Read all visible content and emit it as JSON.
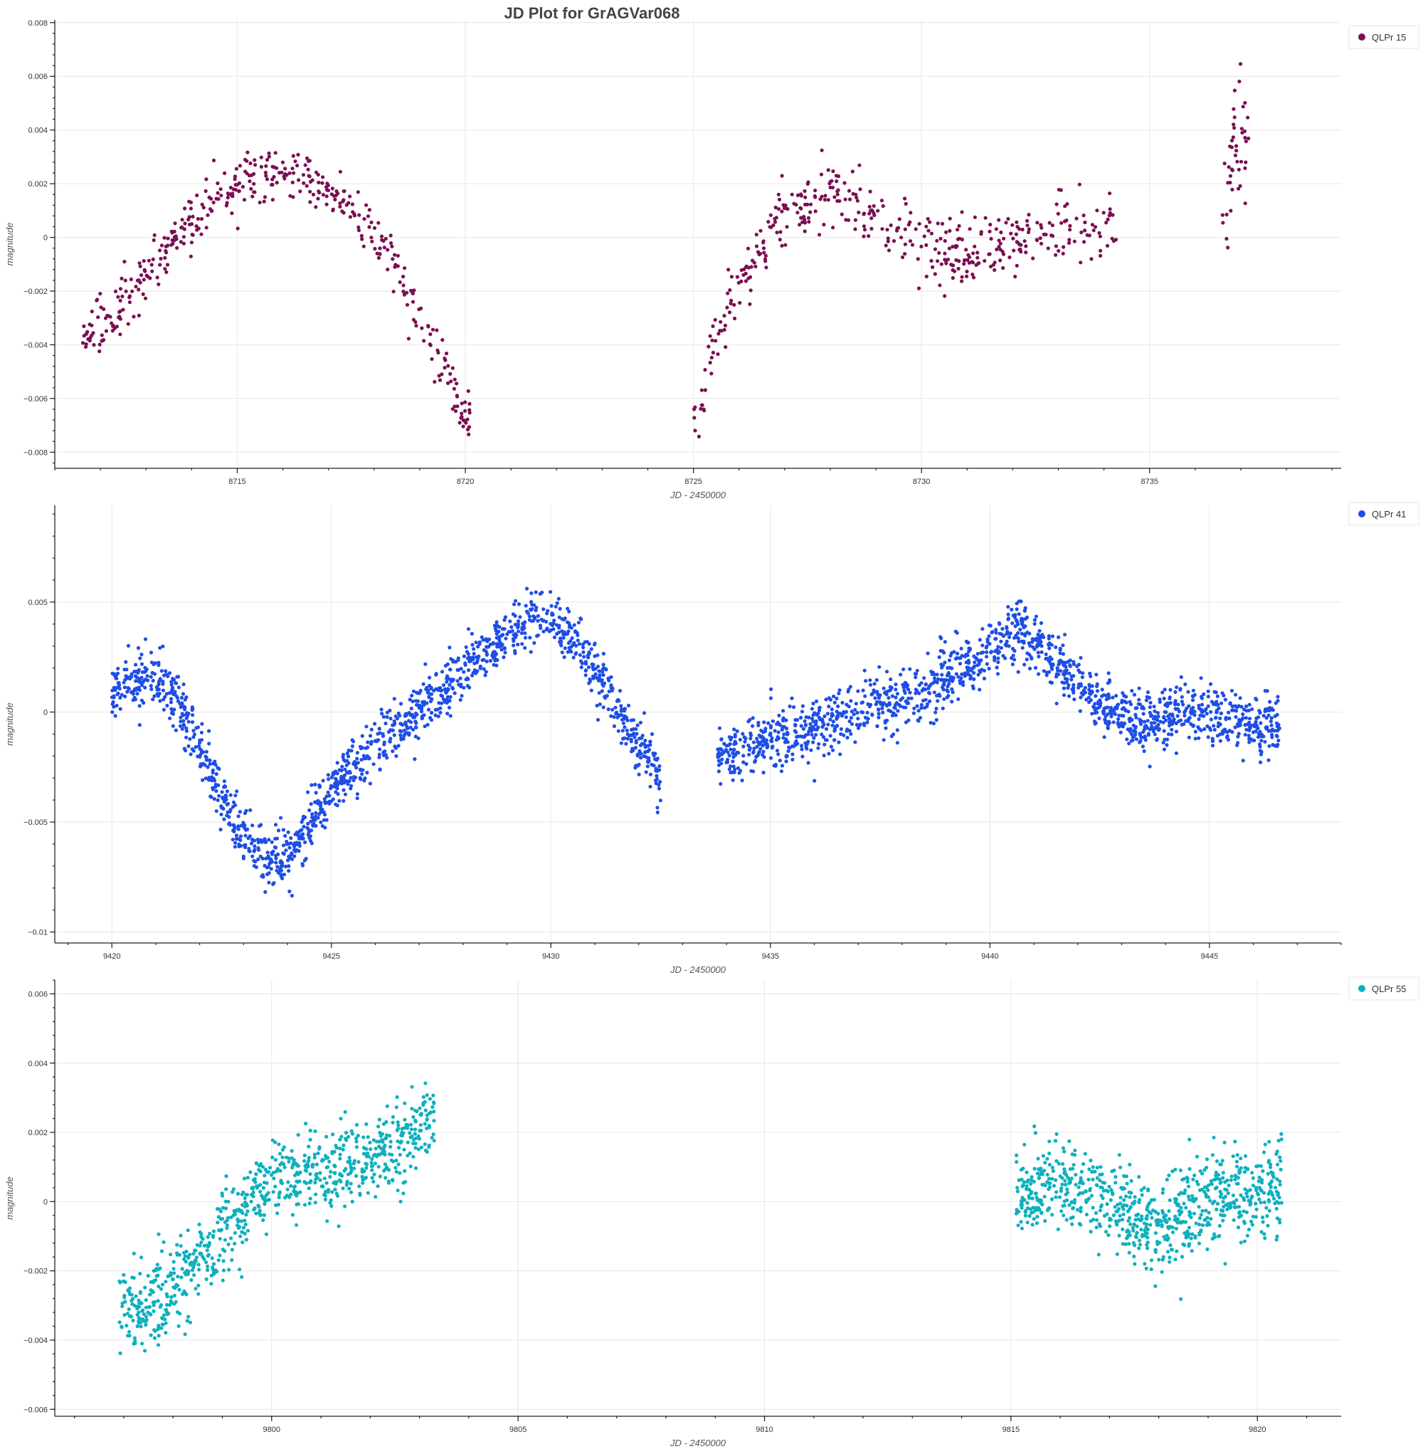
{
  "title": "JD Plot for GrAGVar068",
  "chart_data": [
    {
      "type": "scatter",
      "series": [
        {
          "name": "QLPr 15",
          "color": "#7b0f52"
        }
      ],
      "xlabel": "JD - 2450000",
      "ylabel": "magnitude",
      "xlim": [
        8711.0,
        8739.2
      ],
      "ylim": [
        0.0081,
        -0.0086
      ],
      "y_inverted": true,
      "xticks": [
        8715,
        8720,
        8725,
        8730,
        8735
      ],
      "xtick_labels": [
        "8715",
        "8720",
        "8725",
        "8730",
        "8735"
      ],
      "yticks": [
        -0.008,
        -0.006,
        -0.004,
        -0.002,
        0,
        0.002,
        0.004,
        0.006,
        0.008
      ],
      "ytick_labels": [
        "−0.008",
        "−0.006",
        "−0.004",
        "−0.002",
        "0",
        "0.002",
        "0.004",
        "0.006",
        "0.008"
      ],
      "grid": true,
      "legend": "top-right",
      "observing_runs": [
        {
          "x_start": 8711.6,
          "x_end": 8720.1,
          "n": 420,
          "trend": [
            [
              8711.6,
              -0.0038
            ],
            [
              8712.5,
              -0.0025
            ],
            [
              8713.5,
              -0.0003
            ],
            [
              8714.5,
              0.0015
            ],
            [
              8715.5,
              0.0023
            ],
            [
              8716.5,
              0.0023
            ],
            [
              8717.5,
              0.0012
            ],
            [
              8718.3,
              -0.0005
            ],
            [
              8719.0,
              -0.003
            ],
            [
              8719.6,
              -0.005
            ],
            [
              8720.0,
              -0.0066
            ]
          ],
          "scatter": 0.00085
        },
        {
          "x_start": 8725.0,
          "x_end": 8734.3,
          "n": 420,
          "trend": [
            [
              8725.0,
              -0.007
            ],
            [
              8725.4,
              -0.004
            ],
            [
              8726.0,
              -0.0018
            ],
            [
              8727.0,
              0.0009
            ],
            [
              8728.0,
              0.0016
            ],
            [
              8729.0,
              0.0008
            ],
            [
              8730.0,
              -0.0002
            ],
            [
              8731.0,
              -0.0008
            ],
            [
              8732.0,
              -0.0002
            ],
            [
              8733.0,
              0.0003
            ],
            [
              8734.3,
              0.0004
            ]
          ],
          "scatter": 0.0011
        },
        {
          "x_start": 8736.6,
          "x_end": 8737.2,
          "n": 45,
          "trend": [
            [
              8736.6,
              0.001
            ],
            [
              8736.9,
              0.004
            ],
            [
              8737.2,
              0.003
            ]
          ],
          "scatter": 0.0022
        }
      ]
    },
    {
      "type": "scatter",
      "series": [
        {
          "name": "QLPr 41",
          "color": "#1f4ee6"
        }
      ],
      "xlabel": "JD - 2450000",
      "ylabel": "magnitude",
      "xlim": [
        9418.7,
        9448.0
      ],
      "ylim": [
        0.0094,
        -0.0105
      ],
      "y_inverted": true,
      "xticks": [
        9420,
        9425,
        9430,
        9435,
        9440,
        9445
      ],
      "xtick_labels": [
        "9420",
        "9425",
        "9430",
        "9435",
        "9440",
        "9445"
      ],
      "yticks": [
        -0.01,
        -0.005,
        0,
        0.005
      ],
      "ytick_labels": [
        "−0.01",
        "−0.005",
        "0",
        "0.005"
      ],
      "grid": true,
      "legend": "top-right",
      "observing_runs": [
        {
          "x_start": 9420.0,
          "x_end": 9432.5,
          "n": 1400,
          "trend": [
            [
              9420.0,
              0.001
            ],
            [
              9420.5,
              0.0015
            ],
            [
              9421.0,
              0.0018
            ],
            [
              9421.5,
              0.0005
            ],
            [
              9422.0,
              -0.0015
            ],
            [
              9422.5,
              -0.004
            ],
            [
              9423.0,
              -0.0058
            ],
            [
              9423.7,
              -0.0068
            ],
            [
              9424.3,
              -0.006
            ],
            [
              9425.0,
              -0.0035
            ],
            [
              9426.0,
              -0.0015
            ],
            [
              9427.0,
              0.0
            ],
            [
              9428.0,
              0.0018
            ],
            [
              9429.0,
              0.0035
            ],
            [
              9429.7,
              0.0045
            ],
            [
              9430.3,
              0.0038
            ],
            [
              9431.0,
              0.002
            ],
            [
              9431.7,
              -0.0005
            ],
            [
              9432.5,
              -0.003
            ]
          ],
          "scatter": 0.0012
        },
        {
          "x_start": 9433.8,
          "x_end": 9446.6,
          "n": 1450,
          "trend": [
            [
              9433.8,
              -0.002
            ],
            [
              9435.0,
              -0.0012
            ],
            [
              9436.0,
              -0.0008
            ],
            [
              9437.0,
              0.0
            ],
            [
              9438.0,
              0.0006
            ],
            [
              9439.0,
              0.0015
            ],
            [
              9440.0,
              0.0028
            ],
            [
              9440.7,
              0.0038
            ],
            [
              9441.5,
              0.0022
            ],
            [
              9442.5,
              0.0004
            ],
            [
              9443.5,
              -0.0005
            ],
            [
              9444.5,
              0.0
            ],
            [
              9445.5,
              -0.0004
            ],
            [
              9446.6,
              -0.0007
            ]
          ],
          "scatter": 0.0012
        }
      ]
    },
    {
      "type": "scatter",
      "series": [
        {
          "name": "QLPr 55",
          "color": "#0fb0bd"
        }
      ],
      "xlabel": "JD - 2450000",
      "ylabel": "magnitude",
      "xlim": [
        9795.6,
        9821.7
      ],
      "ylim": [
        0.0064,
        -0.0062
      ],
      "y_inverted": true,
      "xticks": [
        9800,
        9805,
        9810,
        9815,
        9820
      ],
      "xtick_labels": [
        "9800",
        "9805",
        "9810",
        "9815",
        "9820"
      ],
      "yticks": [
        -0.006,
        -0.004,
        -0.002,
        0,
        0.002,
        0.004,
        0.006
      ],
      "ytick_labels": [
        "−0.006",
        "−0.004",
        "−0.002",
        "0",
        "0.002",
        "0.004",
        "0.006"
      ],
      "grid": true,
      "legend": "top-right",
      "observing_runs": [
        {
          "x_start": 9796.9,
          "x_end": 9803.3,
          "n": 820,
          "trend": [
            [
              9796.9,
              -0.0028
            ],
            [
              9797.5,
              -0.003
            ],
            [
              9798.0,
              -0.0024
            ],
            [
              9798.5,
              -0.0018
            ],
            [
              9799.0,
              -0.0008
            ],
            [
              9799.5,
              0.0
            ],
            [
              9800.0,
              0.0005
            ],
            [
              9801.0,
              0.0008
            ],
            [
              9802.0,
              0.0012
            ],
            [
              9802.7,
              0.0018
            ],
            [
              9803.3,
              0.0025
            ]
          ],
          "scatter": 0.0011
        },
        {
          "x_start": 9815.1,
          "x_end": 9820.5,
          "n": 780,
          "trend": [
            [
              9815.1,
              0.0
            ],
            [
              9816.0,
              0.0007
            ],
            [
              9817.0,
              0.0
            ],
            [
              9818.0,
              -0.0008
            ],
            [
              9819.0,
              0.0
            ],
            [
              9820.0,
              0.0002
            ],
            [
              9820.5,
              0.0006
            ]
          ],
          "scatter": 0.0012
        }
      ]
    }
  ]
}
